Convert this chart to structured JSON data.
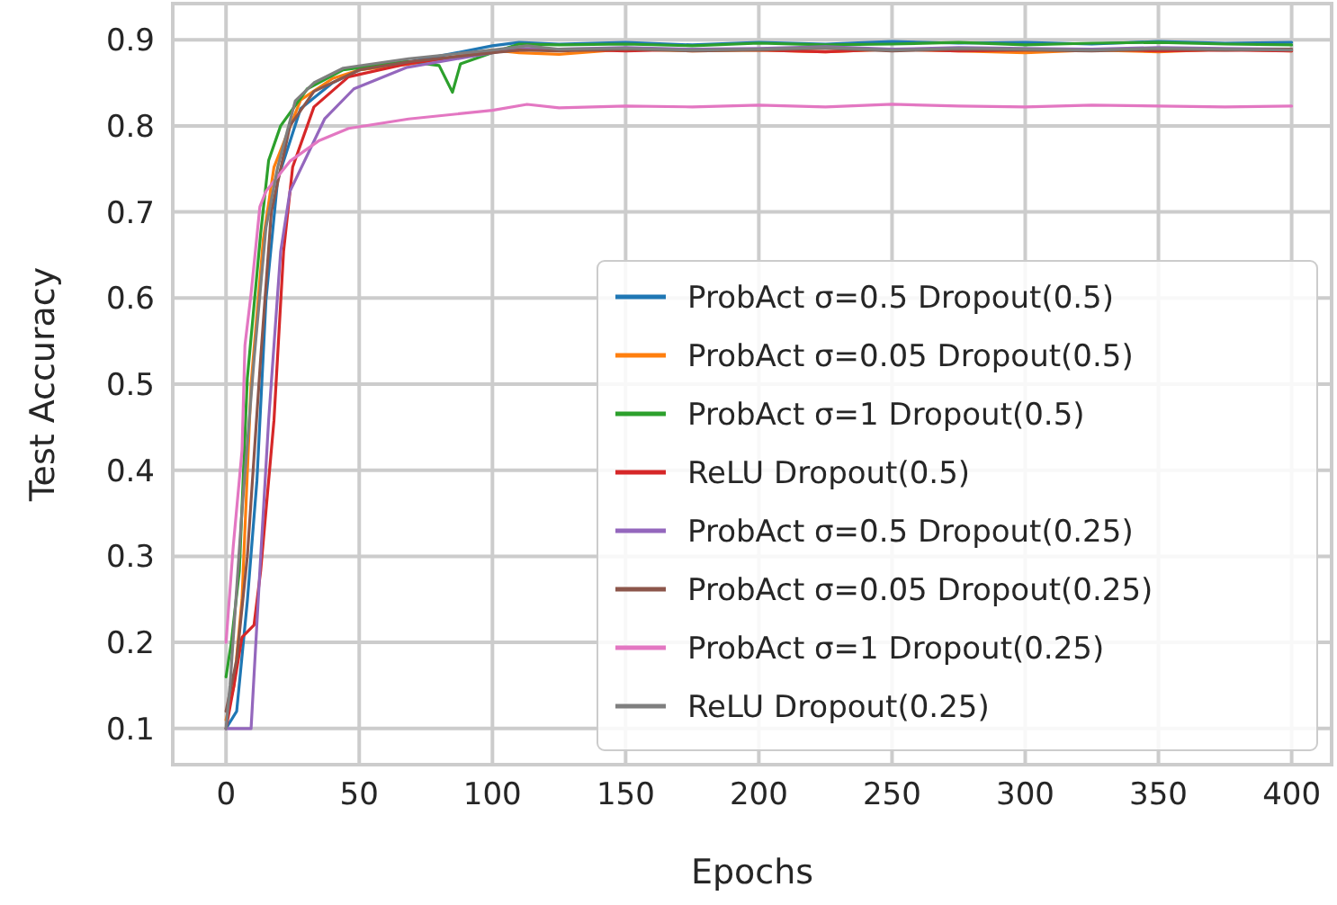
{
  "chart_data": {
    "type": "line",
    "xlabel": "Epochs",
    "ylabel": "Test Accuracy",
    "xlim": [
      -20,
      415
    ],
    "ylim": [
      0.058,
      0.942
    ],
    "xticks": [
      0,
      50,
      100,
      150,
      200,
      250,
      300,
      350,
      400
    ],
    "yticks": [
      0.1,
      0.2,
      0.3,
      0.4,
      0.5,
      0.6,
      0.7,
      0.8,
      0.9
    ],
    "grid": true,
    "legend": "bottom right",
    "line_style": "solid",
    "marker": "none",
    "series": [
      {
        "name": "ProbAct σ=0.5 Dropout(0.5)",
        "color": "#1f77b4",
        "x": [
          0,
          4,
          8,
          11.6,
          15,
          19.4,
          28,
          40,
          50,
          70,
          100,
          110,
          125,
          150,
          175,
          200,
          225,
          250,
          275,
          300,
          325,
          350,
          375,
          400
        ],
        "values": [
          0.1,
          0.12,
          0.248,
          0.388,
          0.598,
          0.738,
          0.82,
          0.85,
          0.865,
          0.875,
          0.893,
          0.897,
          0.895,
          0.897,
          0.894,
          0.897,
          0.895,
          0.898,
          0.896,
          0.897,
          0.895,
          0.898,
          0.896,
          0.897
        ]
      },
      {
        "name": "ProbAct σ=0.05 Dropout(0.5)",
        "color": "#ff7f0e",
        "x": [
          0,
          3,
          6,
          9.4,
          14,
          18,
          28,
          40,
          50,
          70,
          100,
          110,
          125,
          150,
          175,
          200,
          225,
          250,
          275,
          300,
          325,
          350,
          375,
          400
        ],
        "values": [
          0.11,
          0.15,
          0.25,
          0.5,
          0.668,
          0.752,
          0.83,
          0.855,
          0.865,
          0.872,
          0.888,
          0.885,
          0.883,
          0.889,
          0.887,
          0.888,
          0.886,
          0.889,
          0.887,
          0.885,
          0.888,
          0.886,
          0.889,
          0.887
        ]
      },
      {
        "name": "ProbAct σ=1 Dropout(0.5)",
        "color": "#2ca02c",
        "x": [
          0,
          2,
          5,
          8,
          13,
          16,
          20.5,
          30.5,
          44,
          68,
          80,
          85,
          88,
          100,
          110,
          125,
          150,
          175,
          200,
          225,
          250,
          275,
          300,
          325,
          350,
          375,
          400
        ],
        "values": [
          0.16,
          0.2,
          0.283,
          0.507,
          0.675,
          0.76,
          0.8,
          0.843,
          0.865,
          0.875,
          0.87,
          0.839,
          0.872,
          0.885,
          0.895,
          0.894,
          0.895,
          0.893,
          0.896,
          0.894,
          0.895,
          0.897,
          0.894,
          0.896,
          0.897,
          0.895,
          0.894
        ]
      },
      {
        "name": "ReLU Dropout(0.5)",
        "color": "#d62728",
        "x": [
          0,
          3,
          6,
          10.5,
          13,
          18,
          21.6,
          25,
          33,
          46,
          68,
          100,
          110,
          125,
          150,
          175,
          200,
          225,
          250,
          275,
          300,
          325,
          350,
          375,
          400
        ],
        "values": [
          0.1,
          0.15,
          0.206,
          0.22,
          0.283,
          0.458,
          0.654,
          0.752,
          0.822,
          0.857,
          0.872,
          0.886,
          0.888,
          0.889,
          0.887,
          0.889,
          0.888,
          0.886,
          0.889,
          0.887,
          0.888,
          0.889,
          0.887,
          0.888,
          0.887
        ]
      },
      {
        "name": "ProbAct σ=0.5 Dropout(0.25)",
        "color": "#9467bd",
        "x": [
          0,
          5,
          9.4,
          12.7,
          16,
          20.5,
          24,
          30.5,
          37,
          48,
          68,
          100,
          110,
          125,
          150,
          175,
          200,
          225,
          250,
          275,
          300,
          325,
          350,
          375,
          400
        ],
        "values": [
          0.1,
          0.1,
          0.1,
          0.283,
          0.458,
          0.654,
          0.724,
          0.766,
          0.808,
          0.843,
          0.868,
          0.885,
          0.89,
          0.889,
          0.891,
          0.889,
          0.89,
          0.892,
          0.889,
          0.891,
          0.89,
          0.889,
          0.891,
          0.89,
          0.889
        ]
      },
      {
        "name": "ProbAct σ=0.05 Dropout(0.25)",
        "color": "#8c564b",
        "x": [
          0,
          4,
          8,
          13,
          17,
          24,
          33,
          50,
          70,
          100,
          110,
          125,
          150,
          175,
          200,
          225,
          250,
          275,
          300,
          325,
          350,
          375,
          400
        ],
        "values": [
          0.12,
          0.18,
          0.3,
          0.53,
          0.7,
          0.8,
          0.84,
          0.865,
          0.875,
          0.885,
          0.888,
          0.887,
          0.889,
          0.887,
          0.888,
          0.89,
          0.887,
          0.889,
          0.888,
          0.887,
          0.889,
          0.888,
          0.889
        ]
      },
      {
        "name": "ProbAct σ=1 Dropout(0.25)",
        "color": "#e377c2",
        "x": [
          0,
          2.7,
          6,
          7.1,
          9.4,
          12.7,
          15,
          24,
          35,
          46,
          68.5,
          100,
          113,
          125,
          150,
          175,
          200,
          225,
          250,
          275,
          300,
          325,
          350,
          375,
          400
        ],
        "values": [
          0.2,
          0.311,
          0.423,
          0.545,
          0.605,
          0.706,
          0.724,
          0.759,
          0.783,
          0.797,
          0.808,
          0.818,
          0.825,
          0.821,
          0.823,
          0.822,
          0.824,
          0.822,
          0.825,
          0.823,
          0.822,
          0.824,
          0.823,
          0.822,
          0.823
        ]
      },
      {
        "name": "ReLU Dropout(0.25)",
        "color": "#7f7f7f",
        "x": [
          0,
          1.5,
          6,
          10.5,
          15,
          19.4,
          26,
          33,
          44,
          68.5,
          100,
          113,
          125,
          150,
          175,
          200,
          225,
          250,
          275,
          300,
          325,
          350,
          375,
          400
        ],
        "values": [
          0.1,
          0.15,
          0.353,
          0.528,
          0.682,
          0.752,
          0.829,
          0.85,
          0.867,
          0.878,
          0.888,
          0.893,
          0.889,
          0.89,
          0.888,
          0.889,
          0.891,
          0.888,
          0.89,
          0.889,
          0.888,
          0.89,
          0.889,
          0.888
        ]
      }
    ]
  }
}
